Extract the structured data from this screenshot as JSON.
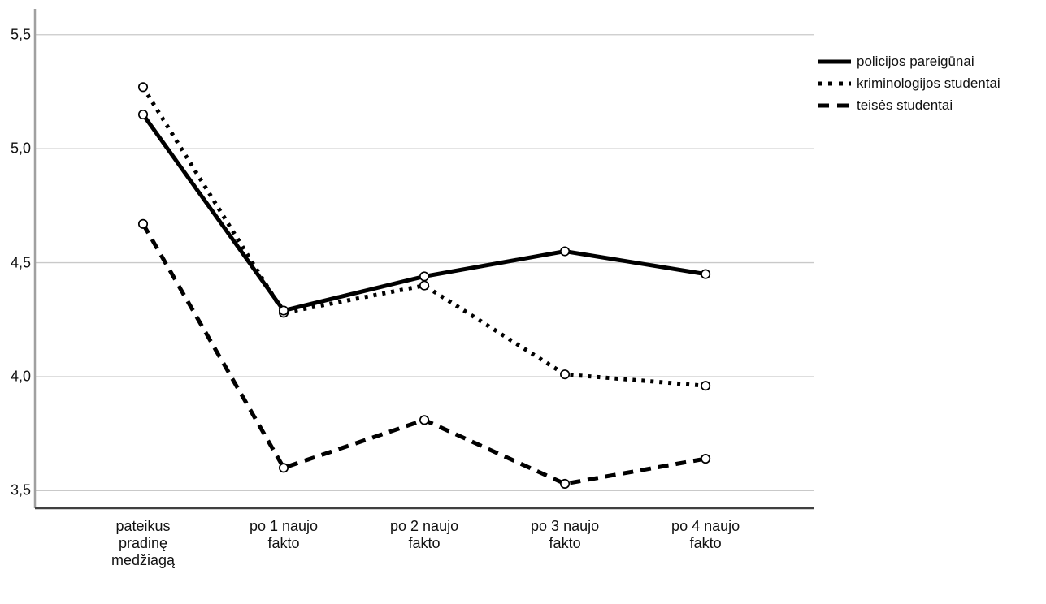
{
  "chart_data": {
    "type": "line",
    "title": "",
    "xlabel": "",
    "ylabel": "",
    "categories": [
      "pateikus\npradinę\nmedžiagą",
      "po 1 naujo\nfakto",
      "po 2 naujo\nfakto",
      "po 3 naujo\nfakto",
      "po 4 naujo\nfakto"
    ],
    "series": [
      {
        "name": "policijos pareigūnai",
        "style": "solid",
        "values": [
          5.15,
          4.29,
          4.44,
          4.55,
          4.45
        ]
      },
      {
        "name": "kriminologijos studentai",
        "style": "dotted",
        "values": [
          5.27,
          4.28,
          4.4,
          4.01,
          3.96
        ]
      },
      {
        "name": "teisės studentai",
        "style": "dashed",
        "values": [
          4.67,
          3.6,
          3.81,
          3.53,
          3.64
        ]
      }
    ],
    "y_ticks": [
      {
        "value": 5.5,
        "label": "5,5"
      },
      {
        "value": 5.0,
        "label": "5,0"
      },
      {
        "value": 4.5,
        "label": "4,5"
      },
      {
        "value": 4.0,
        "label": "4,0"
      },
      {
        "value": 3.5,
        "label": "3,5"
      }
    ],
    "ylim": [
      3.423,
      5.613
    ],
    "grid": true,
    "legend_position": "top-right",
    "marker": "open-circle",
    "colors": {
      "line": "#000000",
      "marker_fill": "#ffffff",
      "gridline": "#c9c9c9",
      "y_axis": "#a0a0a0",
      "x_axis": "#404040",
      "text": "#111111",
      "background": "#ffffff"
    }
  }
}
